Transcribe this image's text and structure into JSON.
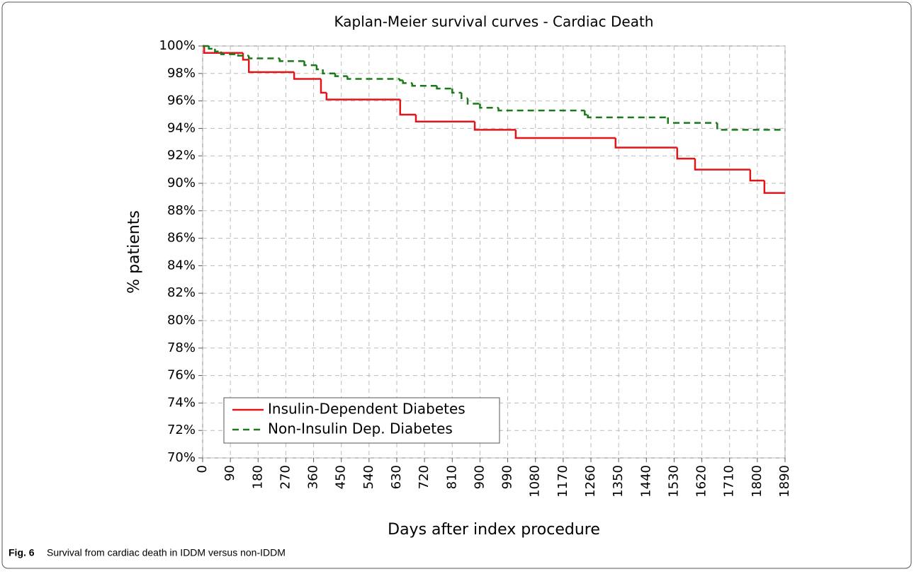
{
  "chart_data": {
    "type": "step",
    "title": "Kaplan-Meier survival curves - Cardiac Death",
    "xlabel": "Days after index procedure",
    "ylabel": "% patients",
    "xlim": [
      0,
      1890
    ],
    "ylim": [
      70,
      100
    ],
    "xticks": [
      0,
      90,
      180,
      270,
      360,
      450,
      540,
      630,
      720,
      810,
      900,
      990,
      1080,
      1170,
      1260,
      1350,
      1440,
      1530,
      1620,
      1710,
      1800,
      1890
    ],
    "yticks": [
      {
        "value": 70,
        "label": "70%"
      },
      {
        "value": 72,
        "label": "72%"
      },
      {
        "value": 74,
        "label": "74%"
      },
      {
        "value": 76,
        "label": "76%"
      },
      {
        "value": 78,
        "label": "78%"
      },
      {
        "value": 80,
        "label": "80%"
      },
      {
        "value": 82,
        "label": "82%"
      },
      {
        "value": 84,
        "label": "84%"
      },
      {
        "value": 86,
        "label": "86%"
      },
      {
        "value": 88,
        "label": "88%"
      },
      {
        "value": 90,
        "label": "90%"
      },
      {
        "value": 92,
        "label": "92%"
      },
      {
        "value": 94,
        "label": "94%"
      },
      {
        "value": 96,
        "label": "96%"
      },
      {
        "value": 98,
        "label": "98%"
      },
      {
        "value": 100,
        "label": "100%"
      }
    ],
    "grid": true,
    "legend": "lower left",
    "series": [
      {
        "name": "Insulin-Dependent Diabetes",
        "color": "#e0161b",
        "line_style": "solid",
        "x": [
          0,
          5,
          131,
          150,
          297,
          384,
          402,
          641,
          692,
          883,
          1016,
          1340,
          1540,
          1598,
          1777,
          1823
        ],
        "values": [
          100,
          99.5,
          99.0,
          98.1,
          97.6,
          96.6,
          96.1,
          95.0,
          94.5,
          93.9,
          93.3,
          92.6,
          91.8,
          91.0,
          90.2,
          89.3
        ]
      },
      {
        "name": "Non-Insulin Dep. Diabetes",
        "color": "#1a7a1a",
        "line_style": "dashed",
        "x": [
          0,
          20,
          40,
          60,
          115,
          150,
          250,
          330,
          370,
          390,
          430,
          470,
          640,
          650,
          680,
          760,
          810,
          840,
          860,
          900,
          960,
          1240,
          1250,
          1510,
          1670
        ],
        "values": [
          100,
          99.8,
          99.6,
          99.4,
          99.3,
          99.1,
          98.9,
          98.6,
          98.3,
          98.0,
          97.8,
          97.6,
          97.5,
          97.3,
          97.1,
          96.9,
          96.6,
          96.2,
          95.8,
          95.5,
          95.3,
          95.0,
          94.8,
          94.4,
          93.9
        ]
      }
    ]
  },
  "caption": {
    "label": "Fig. 6",
    "text": "Survival from cardiac death in IDDM versus non-IDDM"
  }
}
